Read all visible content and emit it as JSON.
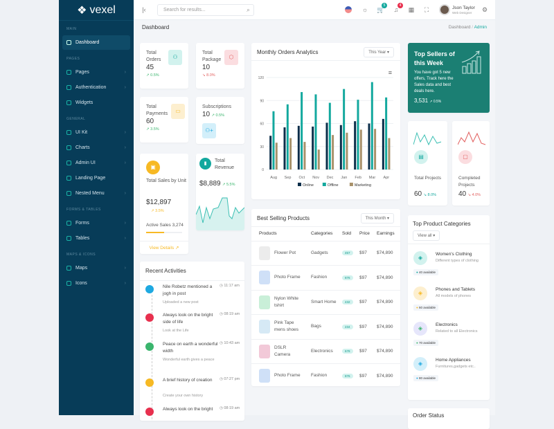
{
  "brand": "vexel",
  "sidebar": {
    "sections": [
      {
        "title": "MAIN",
        "items": [
          {
            "label": "Dashboard",
            "active": true,
            "chevron": false
          }
        ]
      },
      {
        "title": "PAGES",
        "items": [
          {
            "label": "Pages",
            "chevron": true
          },
          {
            "label": "Authentication",
            "chevron": true
          },
          {
            "label": "Widgets",
            "chevron": false
          }
        ]
      },
      {
        "title": "GENERAL",
        "items": [
          {
            "label": "UI Kit",
            "chevron": true
          },
          {
            "label": "Charts",
            "chevron": true
          },
          {
            "label": "Admin UI",
            "chevron": true
          },
          {
            "label": "Landing Page",
            "chevron": false
          },
          {
            "label": "Nested Menu",
            "chevron": true
          }
        ]
      },
      {
        "title": "FORMS & TABLES",
        "items": [
          {
            "label": "Forms",
            "chevron": true
          },
          {
            "label": "Tables",
            "chevron": true
          }
        ]
      },
      {
        "title": "MAPS & ICONS",
        "items": [
          {
            "label": "Maps",
            "chevron": true
          },
          {
            "label": "Icons",
            "chevron": true
          }
        ]
      }
    ]
  },
  "header": {
    "search_placeholder": "Search for results...",
    "cart_count": "5",
    "notif_count": "4",
    "user_name": "Json Taylor",
    "user_role": "Web Designer"
  },
  "breadcrumb": {
    "page_title": "Dashboard",
    "trail": [
      "Dashboard",
      "Admin"
    ]
  },
  "stats": {
    "orders": {
      "label": "Total Orders",
      "value": "45",
      "change": "0.5%"
    },
    "package": {
      "label": "Total Package",
      "value": "10",
      "change": "8.0%"
    },
    "payments": {
      "label": "Total Payments",
      "value": "60",
      "change": "3.5%"
    },
    "subscriptions": {
      "label": "Subscriptions",
      "value": "10",
      "change": "0.5%"
    },
    "sales": {
      "label": "Total Sales by Unit",
      "value": "$12,897",
      "change": "3.5%",
      "active_label": "Active Sales 3,274",
      "progress": 0.5,
      "link": "View Details"
    },
    "revenue": {
      "label": "Total Revenue",
      "value": "$8,889",
      "change": "5.5%"
    }
  },
  "chart_data": {
    "type": "bar",
    "title": "Monthly Orders Analytics",
    "filter": "This Year",
    "categories": [
      "Aug",
      "Sep",
      "Oct",
      "Nov",
      "Dec",
      "Jan",
      "Feb",
      "Mar",
      "Apr"
    ],
    "ylim": [
      0,
      120
    ],
    "yticks": [
      0,
      30,
      60,
      90,
      120
    ],
    "grid": true,
    "legend_placement": "bottom",
    "series": [
      {
        "name": "Online",
        "color": "#0b2e4a",
        "values": [
          44,
          55,
          57,
          56,
          61,
          58,
          63,
          60,
          66
        ]
      },
      {
        "name": "Offline",
        "color": "#13a89e",
        "values": [
          76,
          85,
          101,
          98,
          87,
          105,
          91,
          114,
          94
        ]
      },
      {
        "name": "Marketing",
        "color": "#a8916a",
        "values": [
          35,
          41,
          36,
          26,
          45,
          48,
          52,
          53,
          41
        ]
      }
    ]
  },
  "products": {
    "title": "Best Selling Products",
    "filter": "This Month",
    "columns": [
      "Products",
      "Categories",
      "Sold",
      "Price",
      "Earnings"
    ],
    "rows": [
      {
        "name": "Flower Pot",
        "category": "Gadgets",
        "sold": "457",
        "price": "$97",
        "earnings": "$74,890",
        "color": "#ececec"
      },
      {
        "name": "Photo Frame",
        "category": "Fashion",
        "sold": "876",
        "price": "$97",
        "earnings": "$74,890",
        "color": "#cfe0f7"
      },
      {
        "name": "Nylon White tshirt",
        "category": "Smart Home",
        "sold": "432",
        "price": "$97",
        "earnings": "$74,890",
        "color": "#c9efd8"
      },
      {
        "name": "Pink Tape mens shoes",
        "category": "Bags",
        "sold": "234",
        "price": "$97",
        "earnings": "$74,890",
        "color": "#d6e9f5"
      },
      {
        "name": "DSLR Camera",
        "category": "Electronics",
        "sold": "678",
        "price": "$97",
        "earnings": "$74,890",
        "color": "#f2c9d8"
      },
      {
        "name": "Photo Frame",
        "category": "Fashion",
        "sold": "876",
        "price": "$97",
        "earnings": "$74,890",
        "color": "#cfe0f7"
      }
    ]
  },
  "activities": {
    "title": "Recent Activities",
    "items": [
      {
        "title": "Nile Robetz mentioned a jogh in post",
        "sub": "Uploaded a new post",
        "time": "11:17 am",
        "color": "#1fa9e1"
      },
      {
        "title": "Always look on the bright side of life",
        "sub": "Look at the Life",
        "time": "08:19 am",
        "color": "#e8304e"
      },
      {
        "title": "Peace on earth a wonderful width",
        "sub": "Wonderful earth gives a peace",
        "time": "10:43 am",
        "color": "#3ab56d"
      },
      {
        "title": "A brief history of creation",
        "sub": "Create your own history",
        "time": "07:27 pm",
        "color": "#f7b924"
      },
      {
        "title": "Always look on the bright",
        "sub": "",
        "time": "08:19 am",
        "color": "#e8304e"
      }
    ]
  },
  "top_sellers": {
    "title": "Top Sellers of this Week",
    "text": "You have got 5 new offers, Track here the Sales data and best deals here.",
    "value": "3,531",
    "change": "0.5%"
  },
  "projects": {
    "total": {
      "label": "Total Projects",
      "value": "60",
      "change": "8.0%"
    },
    "completed": {
      "label": "Completed Projects",
      "value": "40",
      "change": "4.0%"
    }
  },
  "categories": {
    "title": "Top Product Categories",
    "filter": "View all",
    "items": [
      {
        "name": "Women's Clothing",
        "sub": "Different types of clothing",
        "avail": "40 available",
        "color": "#13a89e",
        "bg": "#d2f2ee"
      },
      {
        "name": "Phones and Tablets",
        "sub": "All models of phones",
        "avail": "60 available",
        "color": "#f7b924",
        "bg": "#fdefcf"
      },
      {
        "name": "Electronics",
        "sub": "Related to all Electronics",
        "avail": "70 available",
        "color": "#3ab56d",
        "bg": "#e6e6fb"
      },
      {
        "name": "Home Appliances",
        "sub": "Furnitures,gadgets etc..",
        "avail": "80 available",
        "color": "#1fa9e1",
        "bg": "#d3effa"
      }
    ]
  },
  "order_status": {
    "title": "Order Status"
  }
}
